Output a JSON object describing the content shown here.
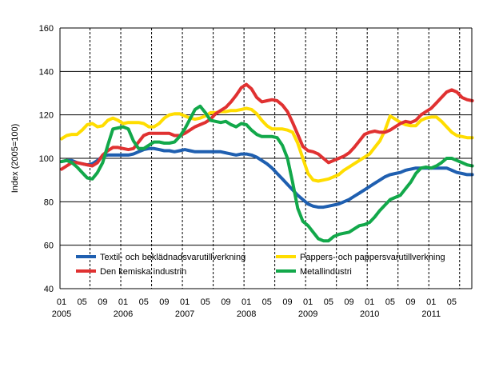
{
  "chart_data": {
    "type": "line",
    "ylabel": "Index (2005=100)",
    "xlabel": "",
    "ylim": [
      40,
      160
    ],
    "yticks": [
      40,
      60,
      80,
      100,
      120,
      140,
      160
    ],
    "grid": "horizontal solid, vertical dashed",
    "legend_placement": "bottom-inside",
    "x_start": "2005-01",
    "x_end": "2011-09",
    "x_tick_labels": [
      {
        "month": "01",
        "year": "2005"
      },
      {
        "month": "05"
      },
      {
        "month": "09"
      },
      {
        "month": "01",
        "year": "2006"
      },
      {
        "month": "05"
      },
      {
        "month": "09"
      },
      {
        "month": "01",
        "year": "2007"
      },
      {
        "month": "05"
      },
      {
        "month": "09"
      },
      {
        "month": "01",
        "year": "2008"
      },
      {
        "month": "05"
      },
      {
        "month": "09"
      },
      {
        "month": "01",
        "year": "2009"
      },
      {
        "month": "05"
      },
      {
        "month": "09"
      },
      {
        "month": "01",
        "year": "2010"
      },
      {
        "month": "05"
      },
      {
        "month": "09"
      },
      {
        "month": "01",
        "year": "2011"
      },
      {
        "month": "05"
      }
    ],
    "series": [
      {
        "name": "Textil- och beklädnadsvarutillverkning",
        "color": "#1f5fb0",
        "values": [
          98.5,
          99,
          99,
          98,
          97.5,
          97,
          97.5,
          99,
          101,
          101.5,
          101.5,
          101.5,
          101.5,
          101.5,
          102,
          103,
          104,
          104.5,
          104.5,
          104,
          103.5,
          103.5,
          103,
          103.5,
          104,
          103.5,
          103,
          103,
          103,
          103,
          103,
          103,
          102.5,
          102,
          101.5,
          102,
          102,
          101.5,
          100.5,
          99,
          97.5,
          95.5,
          93,
          90.5,
          88,
          85.5,
          83,
          81,
          79,
          78,
          77.5,
          77.5,
          78,
          78.5,
          79,
          80,
          81,
          82.5,
          84,
          85.5,
          87,
          88.5,
          90,
          91.5,
          92.5,
          93,
          93.5,
          94.5,
          95,
          95.5,
          95.5,
          95.5,
          95.5,
          95.5,
          95.5,
          95.5,
          94.5,
          93.5,
          93,
          92.5,
          92.5
        ]
      },
      {
        "name": "Pappers- och pappersvarutillverkning",
        "color": "#ffdd00",
        "values": [
          109,
          110.5,
          111,
          111,
          113,
          115.5,
          116,
          114.5,
          115,
          117.5,
          118.5,
          117.5,
          116,
          116.5,
          116.5,
          116.5,
          116,
          114.5,
          114.5,
          116,
          118.5,
          120,
          120.5,
          120.5,
          119.5,
          118.5,
          118,
          118.5,
          119.5,
          121,
          121,
          121.5,
          121.5,
          122,
          122,
          122.5,
          123,
          122.5,
          120.5,
          117.5,
          115,
          113.5,
          113.5,
          113.5,
          113,
          112,
          107,
          100,
          93,
          90,
          89.5,
          90,
          90.5,
          91.5,
          92.5,
          94.5,
          96,
          97.5,
          99,
          100.5,
          102,
          105,
          108,
          113,
          119.5,
          118,
          116.5,
          115.5,
          115,
          115,
          117.5,
          118.5,
          119,
          119,
          117,
          114.5,
          112,
          110.5,
          110,
          109.5,
          109.5
        ]
      },
      {
        "name": "Den kemiska industrin",
        "color": "#e03131",
        "values": [
          95,
          96.5,
          98,
          98,
          97.5,
          97,
          96.5,
          98,
          101.5,
          103.5,
          105,
          105,
          104.5,
          104,
          104.5,
          107.5,
          110.5,
          111.5,
          111.5,
          111.5,
          111.5,
          111.5,
          110.5,
          110.5,
          111.5,
          113,
          114.5,
          115.5,
          116.5,
          118,
          120.5,
          122,
          123.5,
          126,
          129,
          132.5,
          134,
          132,
          128,
          126,
          126.5,
          127,
          126.5,
          124.5,
          121.5,
          116.5,
          111,
          105.5,
          103.5,
          103,
          102,
          100,
          98,
          99,
          100,
          101,
          102.5,
          105,
          108,
          111,
          112,
          112.5,
          112,
          112,
          113,
          114.5,
          116,
          117,
          116.5,
          117.5,
          120,
          121.5,
          123,
          125.5,
          128,
          130.5,
          131.5,
          130.5,
          128,
          127,
          126.5
        ]
      },
      {
        "name": "Metallindustri",
        "color": "#12a84a",
        "values": [
          98.5,
          99,
          98,
          96,
          93.5,
          91,
          90.5,
          93.5,
          98,
          106,
          113.5,
          114,
          114.5,
          113.5,
          108,
          104.5,
          104.5,
          106,
          107.5,
          107.5,
          107,
          107,
          107.5,
          110,
          113.5,
          118,
          122.5,
          124,
          121,
          117.5,
          117,
          116.5,
          117,
          115.5,
          114.5,
          116,
          115.5,
          113,
          111,
          110,
          110,
          110,
          109.5,
          106,
          100,
          89,
          77,
          71,
          69,
          66,
          63,
          62,
          62,
          64,
          65,
          65.5,
          66,
          67.5,
          69,
          69.5,
          70.5,
          73,
          76,
          78.5,
          81,
          82,
          83,
          86,
          89,
          93,
          95.5,
          96,
          95.5,
          96.5,
          98,
          100,
          100,
          99,
          98,
          97,
          96.5
        ]
      }
    ]
  }
}
